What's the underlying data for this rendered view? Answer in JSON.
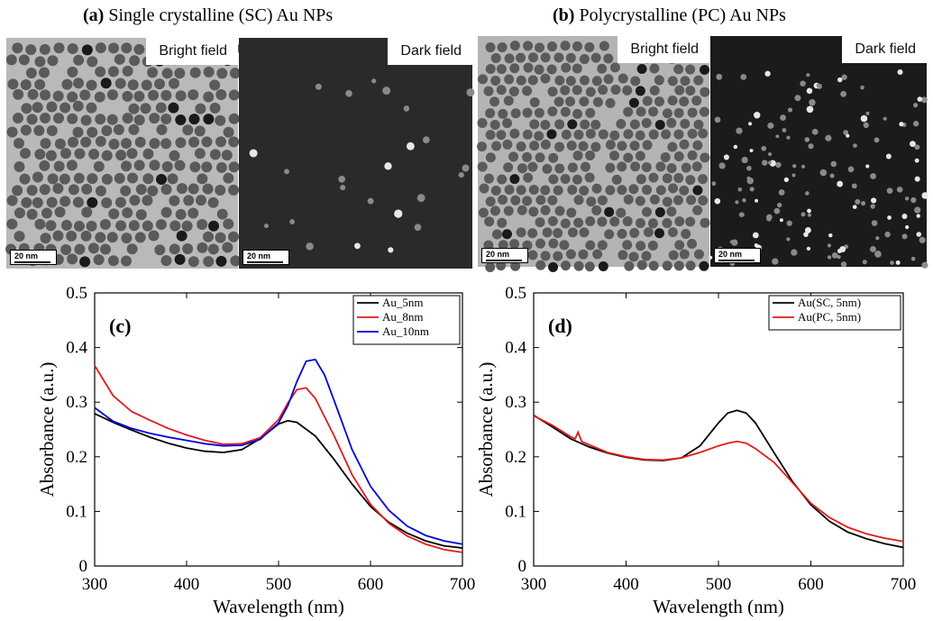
{
  "panel_a": {
    "letter": "(a)",
    "title": "Single crystalline (SC) Au NPs",
    "bright_label": "Bright field",
    "dark_label": "Dark field",
    "scale_label": "20 nm"
  },
  "panel_b": {
    "letter": "(b)",
    "title": "Polycrystalline (PC) Au NPs",
    "bright_label": "Bright field",
    "dark_label": "Dark field",
    "scale_label": "20 nm"
  },
  "chart_data": [
    {
      "id": "c",
      "panel_label": "(c)",
      "type": "line",
      "xlabel": "Wavelength (nm)",
      "ylabel": "Absorbance (a.u.)",
      "xlim": [
        300,
        700
      ],
      "ylim": [
        0,
        0.5
      ],
      "xticks": [
        300,
        400,
        500,
        600,
        700
      ],
      "yticks": [
        0,
        0.1,
        0.2,
        0.3,
        0.4,
        0.5
      ],
      "ytick_labels": [
        "0",
        "0.1",
        "0.2",
        "0.3",
        "0.4",
        "0.5"
      ],
      "grid": false,
      "legend_position": "top-right",
      "series": [
        {
          "name": "Au_5nm",
          "color": "#000000",
          "x": [
            300,
            320,
            340,
            360,
            380,
            400,
            420,
            440,
            460,
            480,
            500,
            510,
            520,
            540,
            560,
            580,
            600,
            620,
            640,
            660,
            680,
            700
          ],
          "y": [
            0.279,
            0.263,
            0.249,
            0.236,
            0.225,
            0.216,
            0.21,
            0.208,
            0.213,
            0.233,
            0.26,
            0.266,
            0.263,
            0.238,
            0.196,
            0.15,
            0.109,
            0.08,
            0.06,
            0.046,
            0.037,
            0.033
          ]
        },
        {
          "name": "Au_8nm",
          "color": "#e31a1c",
          "x": [
            300,
            320,
            340,
            360,
            380,
            400,
            420,
            440,
            460,
            480,
            500,
            510,
            520,
            530,
            540,
            560,
            580,
            600,
            620,
            640,
            660,
            680,
            700
          ],
          "y": [
            0.367,
            0.312,
            0.283,
            0.267,
            0.252,
            0.24,
            0.23,
            0.223,
            0.224,
            0.235,
            0.268,
            0.298,
            0.323,
            0.326,
            0.307,
            0.24,
            0.167,
            0.113,
            0.078,
            0.055,
            0.04,
            0.03,
            0.025
          ]
        },
        {
          "name": "Au_10nm",
          "color": "#0000dd",
          "x": [
            300,
            320,
            340,
            360,
            380,
            400,
            420,
            440,
            460,
            480,
            500,
            510,
            520,
            530,
            540,
            550,
            560,
            580,
            600,
            620,
            640,
            660,
            680,
            700
          ],
          "y": [
            0.29,
            0.265,
            0.252,
            0.243,
            0.236,
            0.23,
            0.224,
            0.22,
            0.221,
            0.232,
            0.262,
            0.293,
            0.338,
            0.375,
            0.378,
            0.35,
            0.305,
            0.213,
            0.146,
            0.102,
            0.073,
            0.056,
            0.046,
            0.04
          ]
        }
      ]
    },
    {
      "id": "d",
      "panel_label": "(d)",
      "type": "line",
      "xlabel": "Wavelength (nm)",
      "ylabel": "Absorbance (a.u.)",
      "xlim": [
        300,
        700
      ],
      "ylim": [
        0,
        0.5
      ],
      "xticks": [
        300,
        400,
        500,
        600,
        700
      ],
      "yticks": [
        0,
        0.1,
        0.2,
        0.3,
        0.4,
        0.5
      ],
      "ytick_labels": [
        "0",
        "0.1",
        "0.2",
        "0.3",
        "0.4",
        "0.5"
      ],
      "grid": false,
      "legend_position": "top-right",
      "series": [
        {
          "name": "Au(SC, 5nm)",
          "color": "#000000",
          "x": [
            300,
            320,
            340,
            360,
            380,
            400,
            420,
            440,
            460,
            480,
            500,
            510,
            520,
            530,
            540,
            560,
            580,
            600,
            620,
            640,
            660,
            680,
            700
          ],
          "y": [
            0.276,
            0.255,
            0.233,
            0.218,
            0.207,
            0.199,
            0.194,
            0.193,
            0.198,
            0.22,
            0.262,
            0.28,
            0.285,
            0.28,
            0.262,
            0.208,
            0.155,
            0.112,
            0.082,
            0.062,
            0.05,
            0.041,
            0.034
          ]
        },
        {
          "name": "Au(PC, 5nm)",
          "color": "#e31a1c",
          "x": [
            300,
            320,
            340,
            345,
            348,
            352,
            360,
            380,
            400,
            420,
            440,
            460,
            480,
            500,
            510,
            520,
            530,
            540,
            560,
            580,
            600,
            620,
            640,
            660,
            680,
            700
          ],
          "y": [
            0.275,
            0.258,
            0.237,
            0.233,
            0.245,
            0.228,
            0.222,
            0.208,
            0.2,
            0.195,
            0.194,
            0.198,
            0.208,
            0.22,
            0.225,
            0.228,
            0.225,
            0.215,
            0.19,
            0.153,
            0.115,
            0.089,
            0.071,
            0.059,
            0.051,
            0.045
          ]
        }
      ]
    }
  ]
}
